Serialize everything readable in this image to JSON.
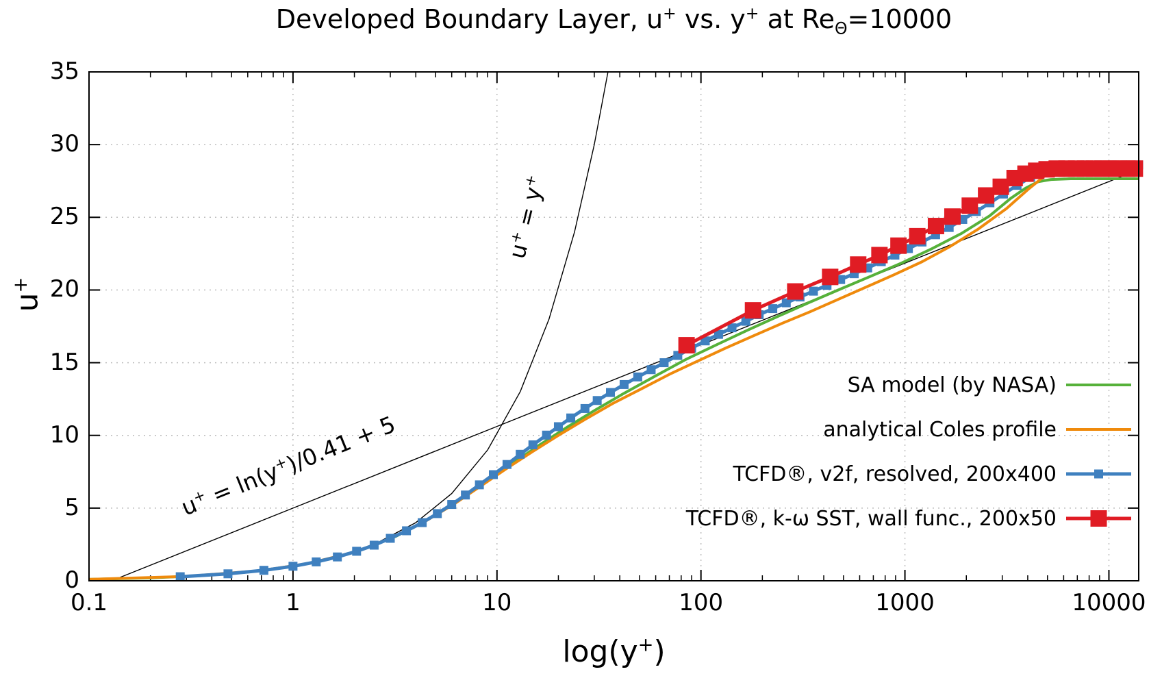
{
  "chart_data": {
    "type": "line",
    "title": "Developed Boundary Layer, u+ vs. y+ at ReΘ=10000",
    "title_parts": [
      [
        "t",
        "Developed Boundary Layer, u"
      ],
      [
        "sup",
        "+"
      ],
      [
        "t",
        " vs. y"
      ],
      [
        "sup",
        "+"
      ],
      [
        "t",
        " at Re"
      ],
      [
        "sub",
        "Θ"
      ],
      [
        "t",
        "=10000"
      ]
    ],
    "xlabel": "log(y+)",
    "xlabel_parts": [
      [
        "t",
        "log(y"
      ],
      [
        "sup",
        "+"
      ],
      [
        "t",
        ")"
      ]
    ],
    "ylabel": "u+",
    "ylabel_parts": [
      [
        "t",
        "u"
      ],
      [
        "sup",
        "+"
      ]
    ],
    "xscale": "log",
    "xlim": [
      0.1,
      14000
    ],
    "ylim": [
      0,
      35
    ],
    "xticks": {
      "values": [
        0.1,
        1,
        10,
        100,
        1000,
        10000
      ],
      "labels": [
        "0.1",
        "1",
        "10",
        "100",
        "1000",
        "10000"
      ]
    },
    "yticks": {
      "values": [
        0,
        5,
        10,
        15,
        20,
        25,
        30,
        35
      ],
      "labels": [
        "0",
        "5",
        "10",
        "15",
        "20",
        "25",
        "30",
        "35"
      ]
    },
    "grid": {
      "show": true,
      "color": "#bdbdbd",
      "style": "dotted"
    },
    "frame_color": "#000000",
    "legend_position": "bottom-right",
    "reference_lines": [
      {
        "name": "u+ = y+",
        "color": "#000000",
        "points": [
          [
            0.1,
            0.1
          ],
          [
            0.2,
            0.2
          ],
          [
            0.4,
            0.4
          ],
          [
            0.8,
            0.8
          ],
          [
            1.5,
            1.5
          ],
          [
            2.5,
            2.5
          ],
          [
            4,
            4
          ],
          [
            6,
            6
          ],
          [
            9,
            9
          ],
          [
            13,
            13
          ],
          [
            18,
            18
          ],
          [
            24,
            24
          ],
          [
            30,
            30
          ],
          [
            35,
            35
          ]
        ]
      },
      {
        "name": "u+ = ln(y+)/0.41 + 5",
        "color": "#000000",
        "points": [
          [
            0.129,
            0
          ],
          [
            1,
            5.0
          ],
          [
            10,
            10.62
          ],
          [
            100,
            16.23
          ],
          [
            1000,
            21.85
          ],
          [
            14000,
            28.28
          ]
        ]
      }
    ],
    "annotations": [
      {
        "text": "u+ = y+",
        "parts": [
          [
            "t",
            "u"
          ],
          [
            "sup",
            "+"
          ],
          [
            "t",
            " = y"
          ],
          [
            "sup",
            "+"
          ]
        ],
        "at": [
          14,
          25
        ],
        "rotation": -76
      },
      {
        "text": "u+ = ln(y+)/0.41 + 5",
        "parts": [
          [
            "t",
            "u"
          ],
          [
            "sup",
            "+"
          ],
          [
            "t",
            " = ln(y"
          ],
          [
            "sup",
            "+"
          ],
          [
            "t",
            ")/0.41 + 5"
          ]
        ],
        "at": [
          0.95,
          7.9
        ],
        "rotation": -22
      }
    ],
    "series": [
      {
        "name": "SA model (by NASA)",
        "color": "#56b13a",
        "line_width": 4,
        "marker": null,
        "marker_size": 0,
        "points": [
          [
            0.1,
            0.1
          ],
          [
            0.2,
            0.2
          ],
          [
            0.35,
            0.35
          ],
          [
            0.6,
            0.6
          ],
          [
            1.0,
            1.0
          ],
          [
            1.5,
            1.49
          ],
          [
            2.2,
            2.16
          ],
          [
            3.2,
            3.06
          ],
          [
            4.5,
            4.15
          ],
          [
            6.3,
            5.4
          ],
          [
            8.8,
            6.8
          ],
          [
            12,
            8.1
          ],
          [
            16,
            9.3
          ],
          [
            22,
            10.55
          ],
          [
            30,
            11.7
          ],
          [
            42,
            12.9
          ],
          [
            60,
            14.1
          ],
          [
            85,
            15.25
          ],
          [
            120,
            16.25
          ],
          [
            170,
            17.25
          ],
          [
            240,
            18.2
          ],
          [
            340,
            19.15
          ],
          [
            480,
            20.05
          ],
          [
            680,
            20.95
          ],
          [
            960,
            21.85
          ],
          [
            1360,
            22.85
          ],
          [
            1900,
            23.9
          ],
          [
            2600,
            25.1
          ],
          [
            3300,
            26.3
          ],
          [
            3900,
            27.0
          ],
          [
            4500,
            27.45
          ],
          [
            5200,
            27.6
          ],
          [
            6500,
            27.65
          ],
          [
            9000,
            27.65
          ],
          [
            14000,
            27.65
          ]
        ]
      },
      {
        "name": "analytical Coles profile",
        "color": "#ef8a0c",
        "line_width": 4,
        "marker": null,
        "marker_size": 0,
        "points": [
          [
            0.1,
            0.1
          ],
          [
            0.3,
            0.3
          ],
          [
            0.7,
            0.7
          ],
          [
            1.2,
            1.2
          ],
          [
            2.0,
            1.97
          ],
          [
            3.0,
            2.9
          ],
          [
            4.4,
            4.05
          ],
          [
            6.2,
            5.3
          ],
          [
            8.6,
            6.65
          ],
          [
            11.5,
            7.85
          ],
          [
            15,
            8.9
          ],
          [
            20,
            10.0
          ],
          [
            27,
            11.1
          ],
          [
            37,
            12.2
          ],
          [
            51,
            13.2
          ],
          [
            70,
            14.2
          ],
          [
            96,
            15.1
          ],
          [
            132,
            16.0
          ],
          [
            181,
            16.85
          ],
          [
            249,
            17.7
          ],
          [
            342,
            18.5
          ],
          [
            470,
            19.35
          ],
          [
            645,
            20.2
          ],
          [
            886,
            21.05
          ],
          [
            1216,
            21.95
          ],
          [
            1670,
            23.0
          ],
          [
            2293,
            24.2
          ],
          [
            3148,
            25.6
          ],
          [
            4000,
            26.9
          ],
          [
            4800,
            27.8
          ],
          [
            5600,
            28.25
          ],
          [
            6500,
            28.45
          ],
          [
            8000,
            28.5
          ],
          [
            10500,
            28.5
          ],
          [
            13500,
            28.5
          ]
        ]
      },
      {
        "name": "TCFD®, v2f, resolved, 200x400",
        "color": "#3f80bf",
        "line_width": 5,
        "marker": "square",
        "marker_size": 13,
        "points": [
          [
            0.28,
            0.28
          ],
          [
            0.48,
            0.48
          ],
          [
            0.72,
            0.72
          ],
          [
            1.0,
            1.0
          ],
          [
            1.3,
            1.3
          ],
          [
            1.65,
            1.64
          ],
          [
            2.05,
            2.03
          ],
          [
            2.5,
            2.45
          ],
          [
            3.0,
            2.92
          ],
          [
            3.6,
            3.44
          ],
          [
            4.3,
            4.0
          ],
          [
            5.1,
            4.62
          ],
          [
            6.0,
            5.25
          ],
          [
            7.0,
            5.9
          ],
          [
            8.2,
            6.6
          ],
          [
            9.6,
            7.3
          ],
          [
            11.2,
            8.0
          ],
          [
            13,
            8.7
          ],
          [
            15,
            9.35
          ],
          [
            17.5,
            10.02
          ],
          [
            20,
            10.6
          ],
          [
            23,
            11.2
          ],
          [
            27,
            11.85
          ],
          [
            31,
            12.4
          ],
          [
            36,
            12.95
          ],
          [
            42,
            13.5
          ],
          [
            49,
            14.02
          ],
          [
            57,
            14.52
          ],
          [
            66,
            15.0
          ],
          [
            77,
            15.5
          ],
          [
            90,
            16.0
          ],
          [
            105,
            16.5
          ],
          [
            122,
            16.95
          ],
          [
            142,
            17.4
          ],
          [
            166,
            17.85
          ],
          [
            193,
            18.3
          ],
          [
            225,
            18.72
          ],
          [
            262,
            19.12
          ],
          [
            306,
            19.52
          ],
          [
            356,
            19.92
          ],
          [
            415,
            20.32
          ],
          [
            484,
            20.72
          ],
          [
            564,
            21.12
          ],
          [
            657,
            21.52
          ],
          [
            766,
            21.95
          ],
          [
            893,
            22.4
          ],
          [
            1040,
            22.85
          ],
          [
            1213,
            23.3
          ],
          [
            1414,
            23.8
          ],
          [
            1648,
            24.3
          ],
          [
            1921,
            24.85
          ],
          [
            2239,
            25.4
          ],
          [
            2610,
            26.0
          ],
          [
            3042,
            26.6
          ],
          [
            3546,
            27.2
          ],
          [
            4133,
            27.75
          ],
          [
            4817,
            28.2
          ],
          [
            5615,
            28.45
          ],
          [
            6545,
            28.55
          ],
          [
            7629,
            28.6
          ],
          [
            8892,
            28.6
          ],
          [
            10364,
            28.6
          ],
          [
            12079,
            28.6
          ],
          [
            14000,
            28.6
          ]
        ]
      },
      {
        "name": "TCFD®, k-ω SST, wall func., 200x50",
        "color": "#e01c24",
        "line_width": 5,
        "marker": "square",
        "marker_size": 24,
        "points": [
          [
            85,
            16.2
          ],
          [
            180,
            18.6
          ],
          [
            290,
            19.9
          ],
          [
            430,
            20.9
          ],
          [
            590,
            21.75
          ],
          [
            750,
            22.4
          ],
          [
            930,
            23.05
          ],
          [
            1150,
            23.7
          ],
          [
            1420,
            24.4
          ],
          [
            1710,
            25.05
          ],
          [
            2080,
            25.8
          ],
          [
            2500,
            26.5
          ],
          [
            2950,
            27.1
          ],
          [
            3450,
            27.7
          ],
          [
            3900,
            28.0
          ],
          [
            4400,
            28.2
          ],
          [
            4950,
            28.3
          ],
          [
            5550,
            28.35
          ],
          [
            6200,
            28.35
          ],
          [
            6900,
            28.35
          ],
          [
            7650,
            28.35
          ],
          [
            8450,
            28.35
          ],
          [
            9300,
            28.35
          ],
          [
            10200,
            28.35
          ],
          [
            11200,
            28.35
          ],
          [
            12300,
            28.35
          ],
          [
            13400,
            28.35
          ]
        ]
      }
    ]
  }
}
